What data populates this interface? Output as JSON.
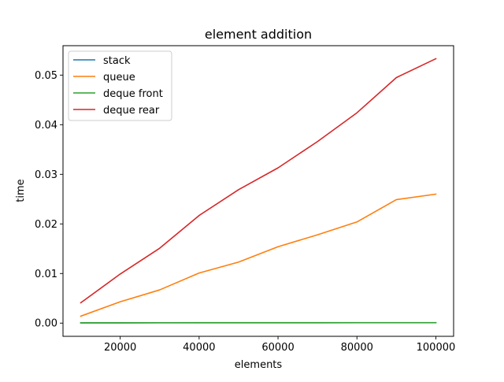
{
  "chart_data": {
    "type": "line",
    "title": "element addition",
    "xlabel": "elements",
    "ylabel": "time",
    "xlim": [
      5500,
      104500
    ],
    "ylim": [
      -0.00266,
      0.05593
    ],
    "grid": false,
    "legend_position": "top-left",
    "x": [
      10000,
      20000,
      30000,
      40000,
      50000,
      60000,
      70000,
      80000,
      90000,
      100000
    ],
    "x_ticks": [
      20000,
      40000,
      60000,
      80000,
      100000
    ],
    "x_tick_labels": [
      "20000",
      "40000",
      "60000",
      "80000",
      "100000"
    ],
    "y_ticks": [
      0.0,
      0.01,
      0.02,
      0.03,
      0.04,
      0.05
    ],
    "y_tick_labels": [
      "0.00",
      "0.01",
      "0.02",
      "0.03",
      "0.04",
      "0.05"
    ],
    "series": [
      {
        "name": "stack",
        "color": "#1f77b4",
        "values": [
          5e-05,
          5e-05,
          6e-05,
          7e-05,
          7e-05,
          7e-05,
          7e-05,
          8e-05,
          8e-05,
          8e-05
        ]
      },
      {
        "name": "queue",
        "color": "#ff7f0e",
        "values": [
          0.0014,
          0.0043,
          0.0067,
          0.0101,
          0.0123,
          0.0154,
          0.0178,
          0.0204,
          0.0249,
          0.026
        ]
      },
      {
        "name": "deque front",
        "color": "#2ca02c",
        "values": [
          7e-05,
          7e-05,
          8e-05,
          9e-05,
          9e-05,
          9e-05,
          9e-05,
          0.0001,
          0.0001,
          0.0001
        ]
      },
      {
        "name": "deque rear",
        "color": "#d62728",
        "values": [
          0.0041,
          0.0099,
          0.0151,
          0.0217,
          0.0269,
          0.0313,
          0.0366,
          0.0424,
          0.0495,
          0.0533
        ]
      }
    ]
  }
}
